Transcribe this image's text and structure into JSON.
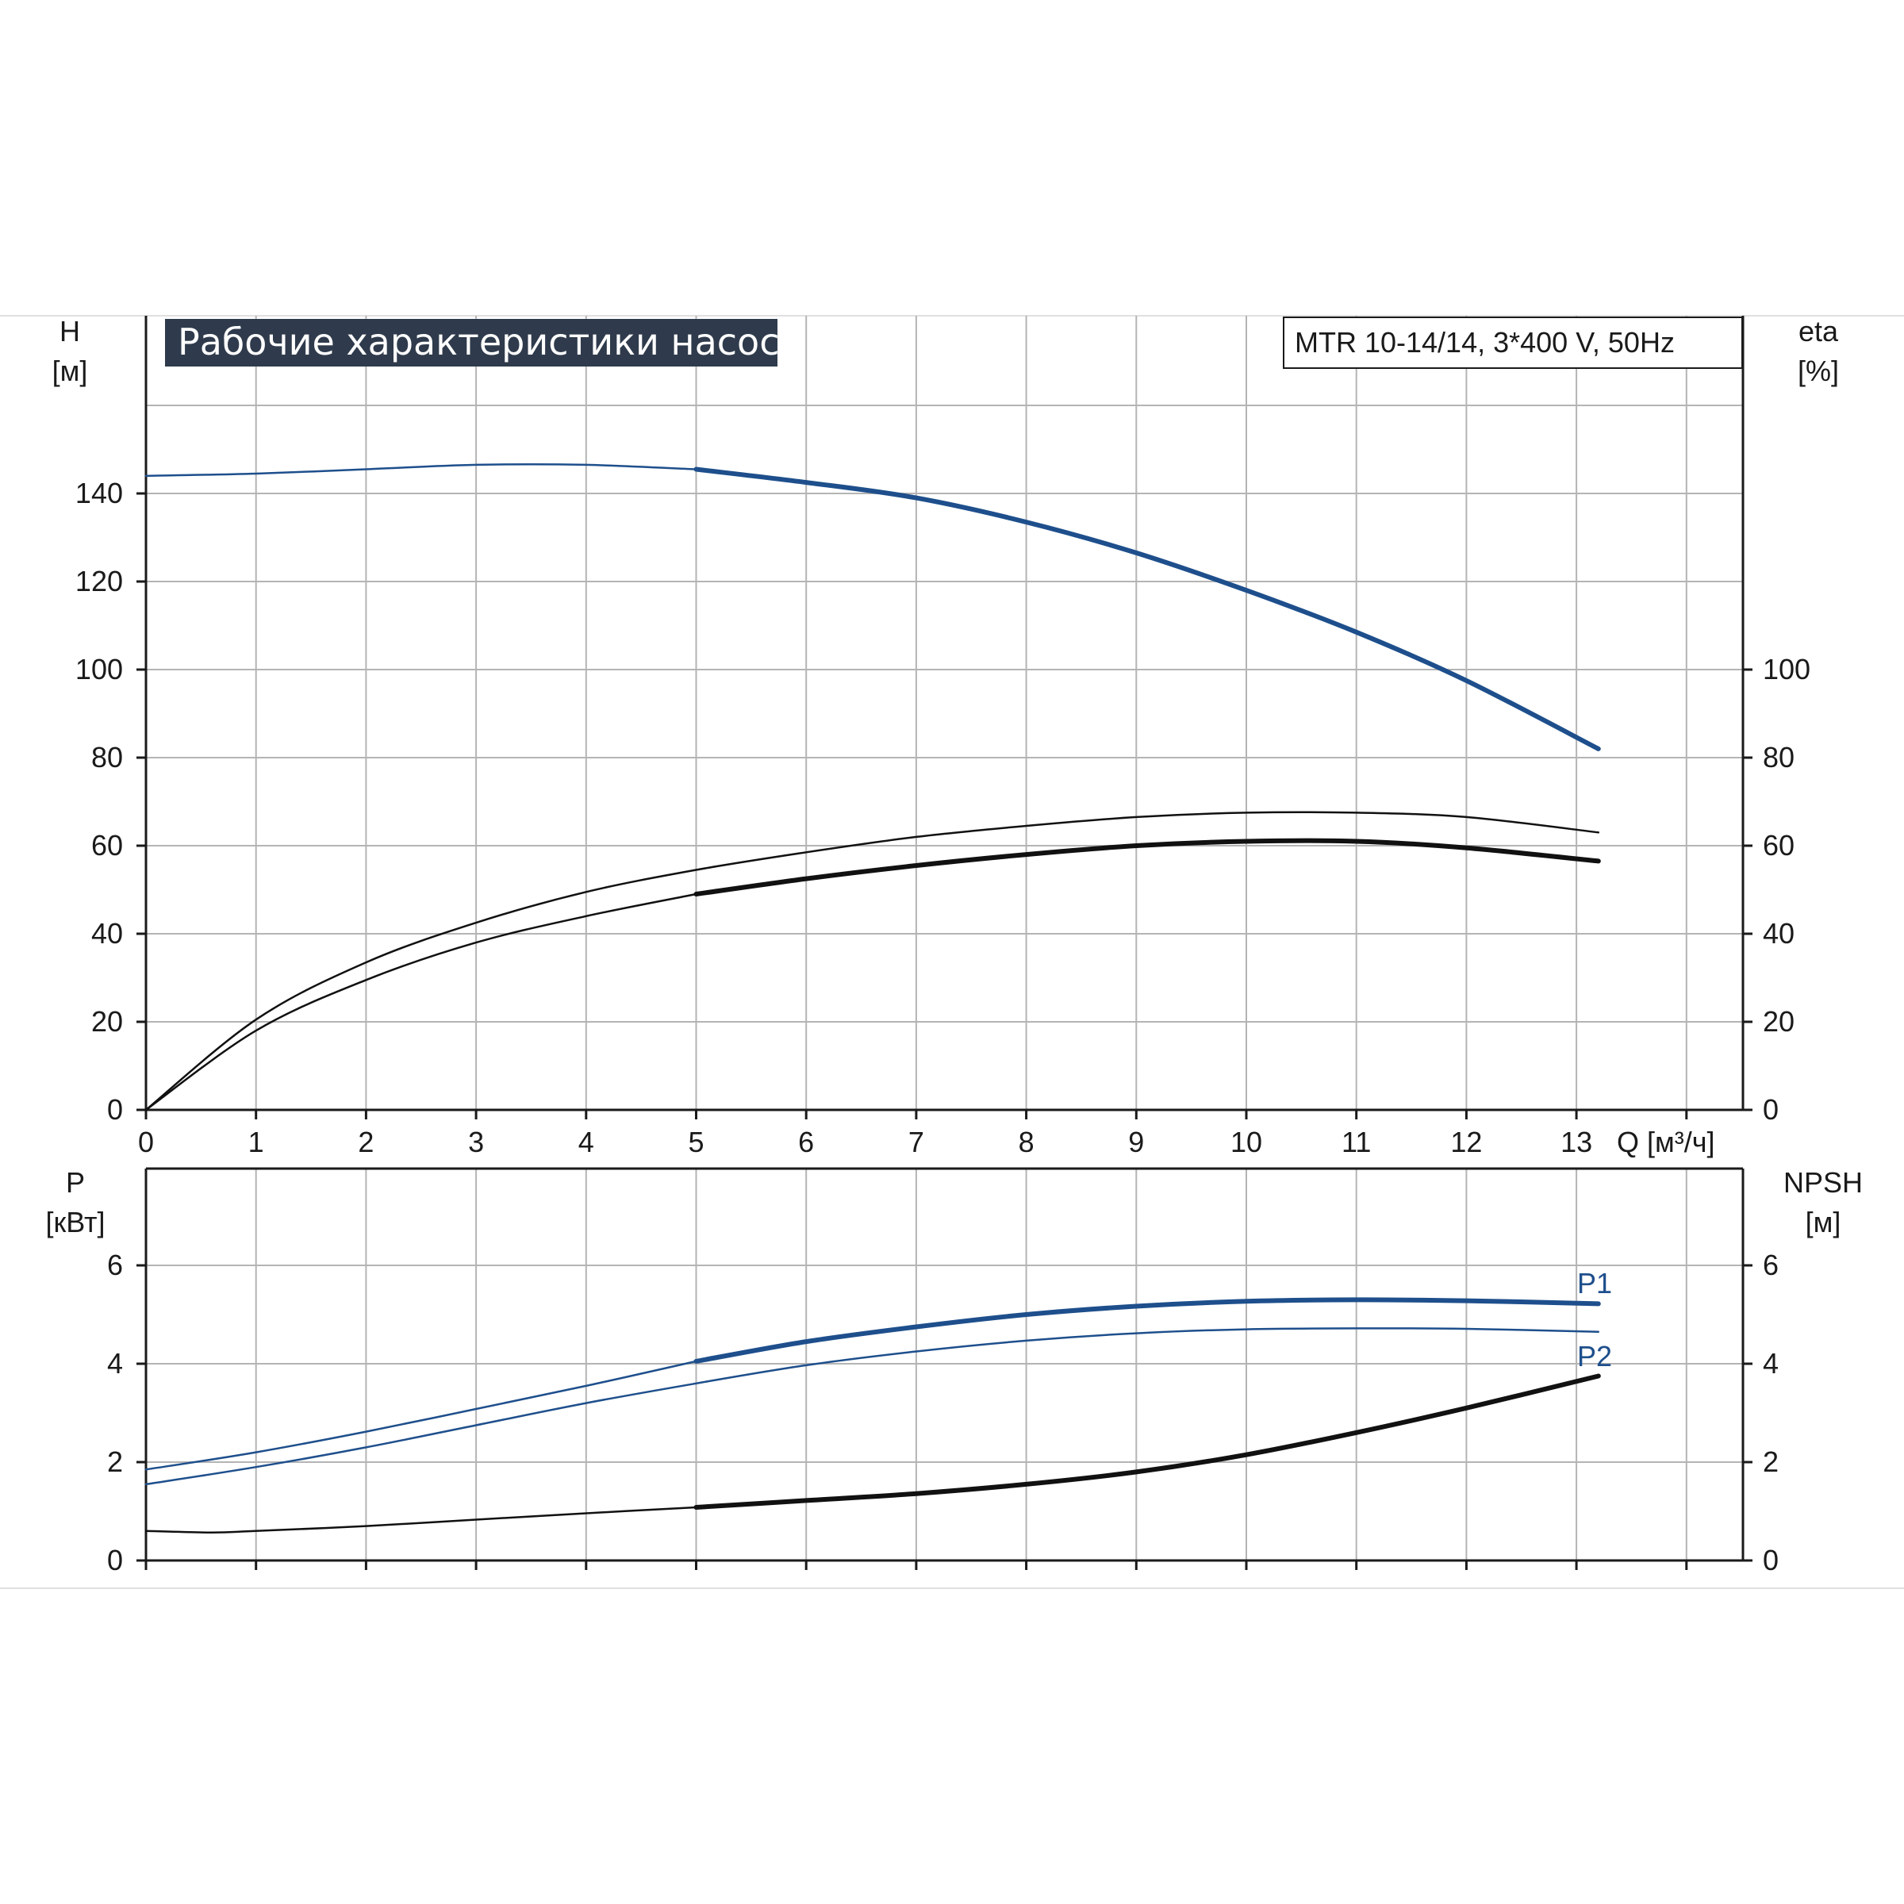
{
  "colors": {
    "pump_blue": "#1e4f8c",
    "efficiency_black": "#111111",
    "grid": "#b4b4b4",
    "title_background": "#2f3b4c",
    "title_text": "#ffffff"
  },
  "header": {
    "title": "Рабочие характеристики насоса",
    "model": "MTR 10-14/14, 3*400 V, 50Hz"
  },
  "chart_data": [
    {
      "type": "line",
      "panel": "top",
      "left_axis": {
        "label": "H",
        "unit": "[м]",
        "ylim": [
          0,
          160
        ],
        "ticks": [
          0,
          20,
          40,
          60,
          80,
          100,
          120,
          140
        ]
      },
      "right_axis": {
        "label": "eta",
        "unit": "[%]",
        "ylim": [
          0,
          160
        ],
        "ticks": [
          0,
          20,
          40,
          60,
          80,
          100
        ]
      },
      "x_axis": {
        "label": "Q [м³/ч]",
        "xlim": [
          0,
          14.5
        ],
        "ticks": [
          0,
          1,
          2,
          3,
          4,
          5,
          6,
          7,
          8,
          9,
          10,
          11,
          12,
          13
        ]
      },
      "grid": true,
      "series": [
        {
          "name": "H",
          "axis": "left",
          "color": "#1e4f8c",
          "thin_until": 5,
          "x": [
            0,
            1,
            2,
            3,
            4,
            5,
            6,
            7,
            8,
            9,
            10,
            11,
            12,
            13.2
          ],
          "y": [
            144,
            144.5,
            145.5,
            146.5,
            146.5,
            145.5,
            142.5,
            139,
            133.5,
            126.5,
            118,
            108.5,
            97.5,
            82
          ]
        },
        {
          "name": "eta_upper",
          "axis": "right",
          "color": "#111111",
          "thin_until": 13.2,
          "x": [
            0,
            1,
            2,
            3,
            4,
            5,
            6,
            7,
            8,
            9,
            10,
            11,
            12,
            13.2
          ],
          "y": [
            0,
            20.5,
            33.5,
            42.5,
            49.5,
            54.5,
            58.5,
            62,
            64.5,
            66.5,
            67.5,
            67.5,
            66.5,
            63
          ]
        },
        {
          "name": "eta",
          "axis": "right",
          "color": "#111111",
          "thin_until": 5,
          "x": [
            0,
            1,
            2,
            3,
            4,
            5,
            6,
            7,
            8,
            9,
            10,
            11,
            12,
            13.2
          ],
          "y": [
            0,
            18,
            29.5,
            38,
            44,
            49,
            52.5,
            55.5,
            58,
            60,
            61,
            61,
            59.5,
            56.5
          ]
        }
      ]
    },
    {
      "type": "line",
      "panel": "bottom",
      "left_axis": {
        "label": "P",
        "unit": "[кВт]",
        "ylim": [
          0,
          8
        ],
        "ticks": [
          0,
          2,
          4,
          6
        ]
      },
      "right_axis": {
        "label": "NPSH",
        "unit": "[м]",
        "ylim": [
          0,
          8
        ],
        "ticks": [
          0,
          2,
          4,
          6
        ]
      },
      "x_axis": {
        "xlim": [
          0,
          14.5
        ],
        "ticks": [
          0,
          1,
          2,
          3,
          4,
          5,
          6,
          7,
          8,
          9,
          10,
          11,
          12,
          13
        ]
      },
      "grid": true,
      "series": [
        {
          "name": "P1",
          "axis": "left",
          "color": "#1e4f8c",
          "thin_until": 5,
          "x": [
            0,
            1,
            2,
            3,
            4,
            5,
            6,
            7,
            8,
            9,
            10,
            11,
            12,
            13.2
          ],
          "y": [
            1.85,
            2.2,
            2.62,
            3.08,
            3.55,
            4.05,
            4.45,
            4.75,
            5.0,
            5.17,
            5.27,
            5.3,
            5.28,
            5.22
          ]
        },
        {
          "name": "P2",
          "axis": "left",
          "color": "#1e4f8c",
          "thin_until": 13.2,
          "x": [
            0,
            1,
            2,
            3,
            4,
            5,
            6,
            7,
            8,
            9,
            10,
            11,
            12,
            13.2
          ],
          "y": [
            1.55,
            1.9,
            2.3,
            2.75,
            3.2,
            3.6,
            3.97,
            4.25,
            4.47,
            4.62,
            4.7,
            4.72,
            4.71,
            4.65
          ]
        },
        {
          "name": "NPSH",
          "axis": "right",
          "color": "#111111",
          "thin_until": 5,
          "x": [
            0,
            0.6,
            1,
            2,
            3,
            4,
            5,
            6,
            7,
            8,
            9,
            10,
            11,
            12,
            13.2
          ],
          "y": [
            0.6,
            0.57,
            0.6,
            0.7,
            0.83,
            0.96,
            1.08,
            1.22,
            1.36,
            1.55,
            1.8,
            2.15,
            2.6,
            3.1,
            3.75
          ]
        }
      ]
    }
  ]
}
